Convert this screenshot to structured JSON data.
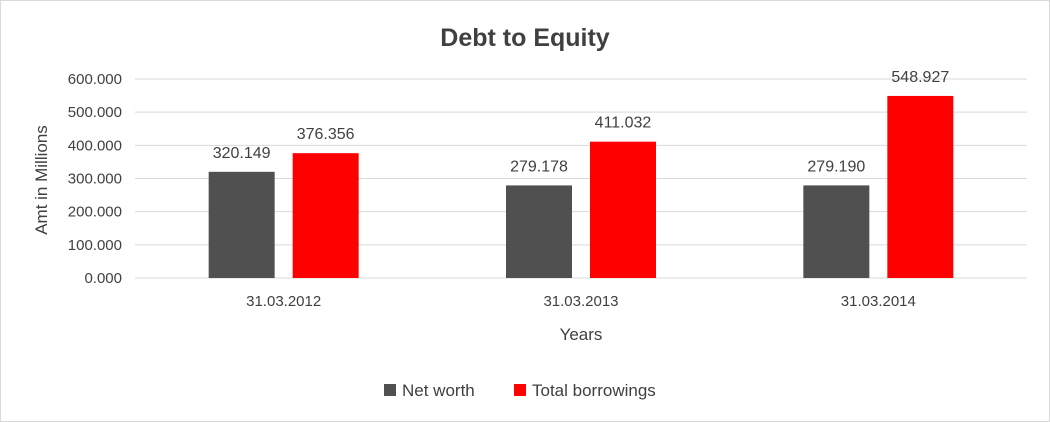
{
  "chart_data": {
    "type": "bar",
    "title": "Debt to Equity",
    "xlabel": "Years",
    "ylabel": "Amt in Millions",
    "categories": [
      "31.03.2012",
      "31.03.2013",
      "31.03.2014"
    ],
    "series": [
      {
        "name": "Net worth",
        "color": "#505050",
        "values": [
          320.149,
          279.178,
          279.19
        ],
        "labels": [
          "320.149",
          "279.178",
          "279.190"
        ]
      },
      {
        "name": "Total borrowings",
        "color": "#ff0000",
        "values": [
          376.356,
          411.032,
          548.927
        ],
        "labels": [
          "376.356",
          "411.032",
          "548.927"
        ]
      }
    ],
    "ylim": [
      0,
      600
    ],
    "yticks": [
      0,
      100,
      200,
      300,
      400,
      500,
      600
    ],
    "ytick_labels": [
      "0.000",
      "100.000",
      "200.000",
      "300.000",
      "400.000",
      "500.000",
      "600.000"
    ],
    "grid": true,
    "gridline_color": "#d9d9d9",
    "legend_position": "bottom"
  }
}
